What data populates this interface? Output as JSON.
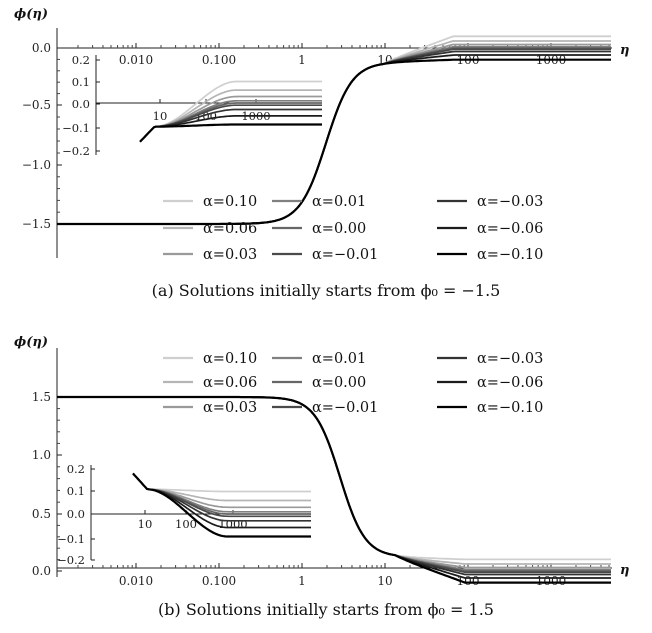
{
  "chart_data": [
    {
      "type": "line",
      "caption": "(a)  Solutions initially starts from ϕ₀ = −1.5",
      "ylabel": "ϕ(η)",
      "xlabel": "η",
      "xscale": "log",
      "x_ticks": [
        "0.010",
        "0.100",
        "1",
        "10",
        "100",
        "1000"
      ],
      "y_ticks": [
        "0.0",
        "−0.5",
        "−1.0",
        "−1.5"
      ],
      "ylim": [
        -1.8,
        0.13
      ],
      "initial_value": -1.5,
      "series": [
        {
          "name": "α=0.10",
          "asymptote": 0.1,
          "color": "#cfcfcf"
        },
        {
          "name": "α=0.06",
          "asymptote": 0.06,
          "color": "#b5b5b5"
        },
        {
          "name": "α=0.03",
          "asymptote": 0.03,
          "color": "#9a9a9a"
        },
        {
          "name": "α=0.01",
          "asymptote": 0.01,
          "color": "#808080"
        },
        {
          "name": "α=0.00",
          "asymptote": 0.0,
          "color": "#666666"
        },
        {
          "name": "α=−0.01",
          "asymptote": -0.01,
          "color": "#4a4a4a"
        },
        {
          "name": "α=−0.03",
          "asymptote": -0.03,
          "color": "#333333"
        },
        {
          "name": "α=−0.06",
          "asymptote": -0.06,
          "color": "#1c1c1c"
        },
        {
          "name": "α=−0.10",
          "asymptote": -0.1,
          "color": "#000000"
        }
      ],
      "inset": {
        "y_ticks": [
          "0.2",
          "0.1",
          "0.0",
          "−0.1",
          "−0.2"
        ],
        "x_ticks": [
          "10",
          "100",
          "1000"
        ],
        "ylim": [
          -0.22,
          0.22
        ]
      }
    },
    {
      "type": "line",
      "caption": "(b)  Solutions initially starts from ϕ₀ = 1.5",
      "ylabel": "ϕ(η)",
      "xlabel": "η",
      "xscale": "log",
      "x_ticks": [
        "0.010",
        "0.100",
        "1",
        "10",
        "100",
        "1000"
      ],
      "y_ticks": [
        "1.5",
        "1.0",
        "0.5",
        "0.0"
      ],
      "ylim": [
        -0.13,
        1.8
      ],
      "initial_value": 1.5,
      "series": [
        {
          "name": "α=0.10",
          "asymptote": 0.1,
          "color": "#cfcfcf"
        },
        {
          "name": "α=0.06",
          "asymptote": 0.06,
          "color": "#b5b5b5"
        },
        {
          "name": "α=0.03",
          "asymptote": 0.03,
          "color": "#9a9a9a"
        },
        {
          "name": "α=0.01",
          "asymptote": 0.01,
          "color": "#808080"
        },
        {
          "name": "α=0.00",
          "asymptote": 0.0,
          "color": "#666666"
        },
        {
          "name": "α=−0.01",
          "asymptote": -0.01,
          "color": "#4a4a4a"
        },
        {
          "name": "α=−0.03",
          "asymptote": -0.03,
          "color": "#333333"
        },
        {
          "name": "α=−0.06",
          "asymptote": -0.06,
          "color": "#1c1c1c"
        },
        {
          "name": "α=−0.10",
          "asymptote": -0.1,
          "color": "#000000"
        }
      ],
      "inset": {
        "y_ticks": [
          "0.2",
          "0.1",
          "0.0",
          "−0.1",
          "−0.2"
        ],
        "x_ticks": [
          "10",
          "100",
          "1000"
        ],
        "ylim": [
          -0.22,
          0.22
        ]
      }
    }
  ]
}
